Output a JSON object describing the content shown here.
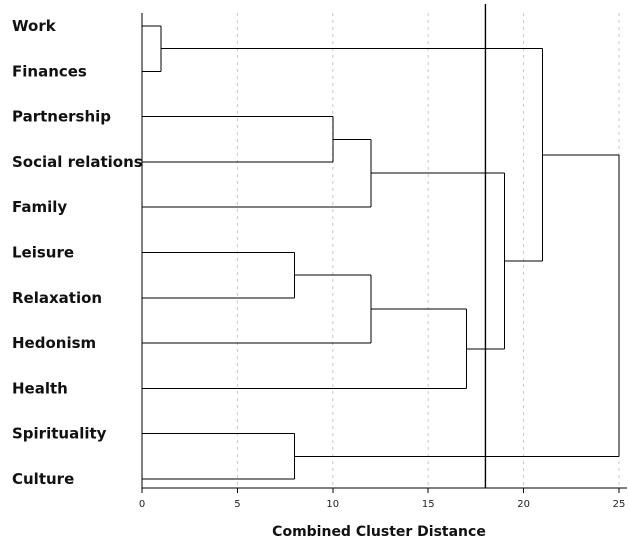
{
  "chart_data": {
    "type": "dendrogram",
    "xlabel": "Combined Cluster Distance",
    "xlim": [
      0,
      25
    ],
    "xticks": [
      0,
      5,
      10,
      15,
      20,
      25
    ],
    "grid": "dashed vertical at ticks",
    "cut_distance": 18,
    "leaves": [
      "Work",
      "Finances",
      "Partnership",
      "Social relations",
      "Family",
      "Leisure",
      "Relaxation",
      "Hedonism",
      "Health",
      "Spirituality",
      "Culture"
    ],
    "merges": [
      {
        "id": "c1",
        "left": "Work",
        "right": "Finances",
        "distance": 1
      },
      {
        "id": "c2",
        "left": "Partnership",
        "right": "Social relations",
        "distance": 10
      },
      {
        "id": "c3",
        "left": "c2",
        "right": "Family",
        "distance": 12
      },
      {
        "id": "c4",
        "left": "Leisure",
        "right": "Relaxation",
        "distance": 8
      },
      {
        "id": "c5",
        "left": "c4",
        "right": "Hedonism",
        "distance": 12
      },
      {
        "id": "c6",
        "left": "c5",
        "right": "Health",
        "distance": 17
      },
      {
        "id": "c7",
        "left": "c3",
        "right": "c6",
        "distance": 19
      },
      {
        "id": "c8",
        "left": "c1",
        "right": "c7",
        "distance": 21
      },
      {
        "id": "c9",
        "left": "Spirituality",
        "right": "Culture",
        "distance": 8
      },
      {
        "id": "c10",
        "left": "c8",
        "right": "c9",
        "distance": 25
      }
    ]
  }
}
